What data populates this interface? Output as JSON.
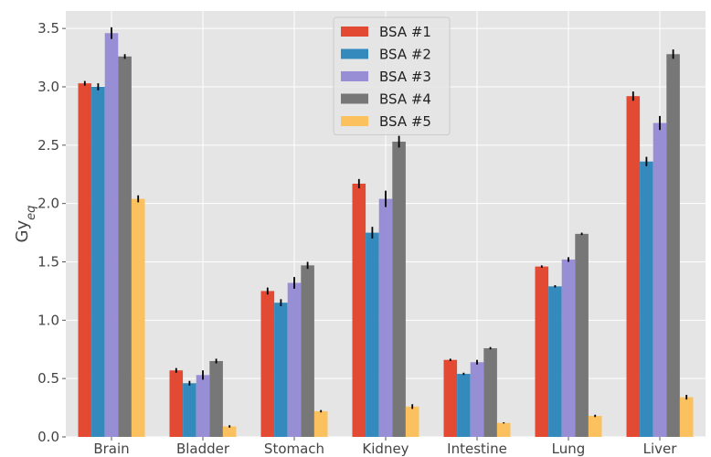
{
  "chart_data": {
    "type": "bar",
    "title": "",
    "xlabel": "",
    "ylabel": "Gy",
    "ylabel_sub": "eq",
    "ylim": [
      0,
      3.65
    ],
    "yticks": [
      0.0,
      0.5,
      1.0,
      1.5,
      2.0,
      2.5,
      3.0,
      3.5
    ],
    "ytick_labels": [
      "0.0",
      "0.5",
      "1.0",
      "1.5",
      "2.0",
      "2.5",
      "3.0",
      "3.5"
    ],
    "grid": true,
    "legend_position": "top-center",
    "categories": [
      "Brain",
      "Bladder",
      "Stomach",
      "Kidney",
      "Intestine",
      "Lung",
      "Liver"
    ],
    "series": [
      {
        "name": "BSA #1",
        "color": "#E24A33",
        "values": [
          3.03,
          0.57,
          1.25,
          2.17,
          0.66,
          1.46,
          2.92
        ],
        "errors": [
          0.02,
          0.02,
          0.03,
          0.04,
          0.01,
          0.01,
          0.04
        ]
      },
      {
        "name": "BSA #2",
        "color": "#348ABD",
        "values": [
          3.0,
          0.46,
          1.15,
          1.75,
          0.54,
          1.29,
          2.36
        ],
        "errors": [
          0.03,
          0.02,
          0.03,
          0.05,
          0.01,
          0.01,
          0.04
        ]
      },
      {
        "name": "BSA #3",
        "color": "#988ED5",
        "values": [
          3.46,
          0.53,
          1.32,
          2.04,
          0.64,
          1.52,
          2.69
        ],
        "errors": [
          0.05,
          0.04,
          0.05,
          0.07,
          0.02,
          0.02,
          0.06
        ]
      },
      {
        "name": "BSA #4",
        "color": "#777777",
        "values": [
          3.26,
          0.65,
          1.47,
          2.53,
          0.76,
          1.74,
          3.28
        ],
        "errors": [
          0.02,
          0.02,
          0.03,
          0.05,
          0.01,
          0.01,
          0.04
        ]
      },
      {
        "name": "BSA #5",
        "color": "#FBC15E",
        "values": [
          2.04,
          0.09,
          0.22,
          0.26,
          0.12,
          0.18,
          0.34
        ],
        "errors": [
          0.03,
          0.01,
          0.01,
          0.02,
          0.005,
          0.01,
          0.02
        ]
      }
    ]
  }
}
